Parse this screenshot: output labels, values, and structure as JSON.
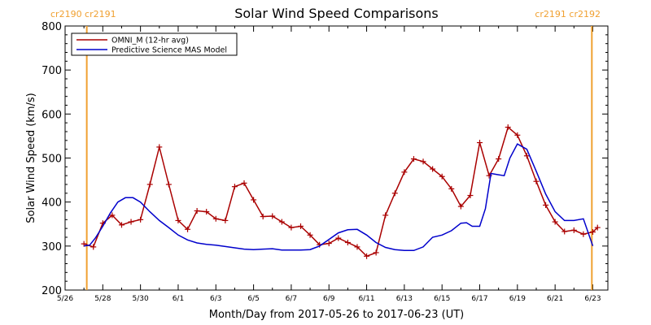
{
  "chart_data": {
    "type": "line",
    "title": "Solar Wind Speed Comparisons",
    "xlabel": "Month/Day from 2017-05-26 to 2017-06-23 (UT)",
    "ylabel": "Solar Wind Speed (km/s)",
    "xlim": [
      "2017-05-26",
      "2017-06-23"
    ],
    "ylim": [
      200,
      800
    ],
    "yticks": [
      200,
      300,
      400,
      500,
      600,
      700,
      800
    ],
    "xticks": [
      {
        "label": "5/26",
        "day": 0
      },
      {
        "label": "5/28",
        "day": 2
      },
      {
        "label": "5/30",
        "day": 4
      },
      {
        "label": "6/1",
        "day": 6
      },
      {
        "label": "6/3",
        "day": 8
      },
      {
        "label": "6/5",
        "day": 10
      },
      {
        "label": "6/7",
        "day": 12
      },
      {
        "label": "6/9",
        "day": 14
      },
      {
        "label": "6/11",
        "day": 16
      },
      {
        "label": "6/13",
        "day": 18
      },
      {
        "label": "6/15",
        "day": 20
      },
      {
        "label": "6/17",
        "day": 22
      },
      {
        "label": "6/19",
        "day": 24
      },
      {
        "label": "6/21",
        "day": 26
      },
      {
        "label": "6/23",
        "day": 28
      }
    ],
    "legend_position": "top-left",
    "carrington_markers": [
      {
        "label": "cr2190 cr2191",
        "day": 1.15,
        "side": "left"
      },
      {
        "label": "cr2191 cr2192",
        "day": 27.95,
        "side": "right"
      }
    ],
    "series": [
      {
        "name": "OMNI_M (12-hr avg)",
        "color": "#aa0000",
        "marker": "+",
        "x": [
          1.0,
          1.5,
          2.0,
          2.5,
          3.0,
          3.5,
          4.0,
          4.5,
          5.0,
          5.5,
          6.0,
          6.5,
          7.0,
          7.5,
          8.0,
          8.5,
          9.0,
          9.5,
          10.0,
          10.5,
          11.0,
          11.5,
          12.0,
          12.5,
          13.0,
          13.5,
          14.0,
          14.5,
          15.0,
          15.5,
          16.0,
          16.5,
          17.0,
          17.5,
          18.0,
          18.5,
          19.0,
          19.5,
          20.0,
          20.5,
          21.0,
          21.5,
          22.0,
          22.5,
          23.0,
          23.5,
          24.0,
          24.5,
          25.0,
          25.5,
          26.0,
          26.5,
          27.0,
          27.5,
          28.0,
          28.25
        ],
        "y": [
          305,
          298,
          352,
          370,
          348,
          355,
          360,
          440,
          525,
          440,
          358,
          338,
          380,
          378,
          362,
          358,
          435,
          443,
          405,
          367,
          368,
          355,
          342,
          345,
          325,
          303,
          306,
          318,
          308,
          298,
          277,
          285,
          370,
          420,
          468,
          498,
          492,
          475,
          458,
          430,
          390,
          415,
          535,
          460,
          498,
          570,
          552,
          505,
          447,
          393,
          355,
          333,
          336,
          327,
          332,
          342
        ]
      },
      {
        "name": "Predictive Science MAS Model",
        "color": "#0000cc",
        "marker": "none",
        "x": [
          1.0,
          1.3,
          1.6,
          2.0,
          2.4,
          2.8,
          3.2,
          3.6,
          4.0,
          4.5,
          5.0,
          5.5,
          6.0,
          6.5,
          7.0,
          7.5,
          8.0,
          8.5,
          9.0,
          9.5,
          10.0,
          10.5,
          11.0,
          11.5,
          12.0,
          12.5,
          13.0,
          13.5,
          14.0,
          14.5,
          15.0,
          15.5,
          16.0,
          16.5,
          17.0,
          17.5,
          18.0,
          18.5,
          19.0,
          19.5,
          20.0,
          20.5,
          21.0,
          21.3,
          21.6,
          22.0,
          22.3,
          22.6,
          23.0,
          23.3,
          23.6,
          24.0,
          24.5,
          25.0,
          25.5,
          26.0,
          26.5,
          27.0,
          27.5,
          28.0
        ],
        "y": [
          300,
          302,
          318,
          345,
          375,
          400,
          410,
          410,
          400,
          378,
          358,
          342,
          325,
          314,
          307,
          304,
          302,
          299,
          296,
          293,
          292,
          293,
          294,
          291,
          291,
          291,
          292,
          300,
          315,
          330,
          337,
          338,
          325,
          308,
          297,
          292,
          290,
          290,
          298,
          320,
          325,
          335,
          352,
          353,
          345,
          345,
          385,
          465,
          462,
          460,
          500,
          532,
          520,
          470,
          418,
          378,
          358,
          358,
          362,
          300
        ]
      }
    ]
  }
}
